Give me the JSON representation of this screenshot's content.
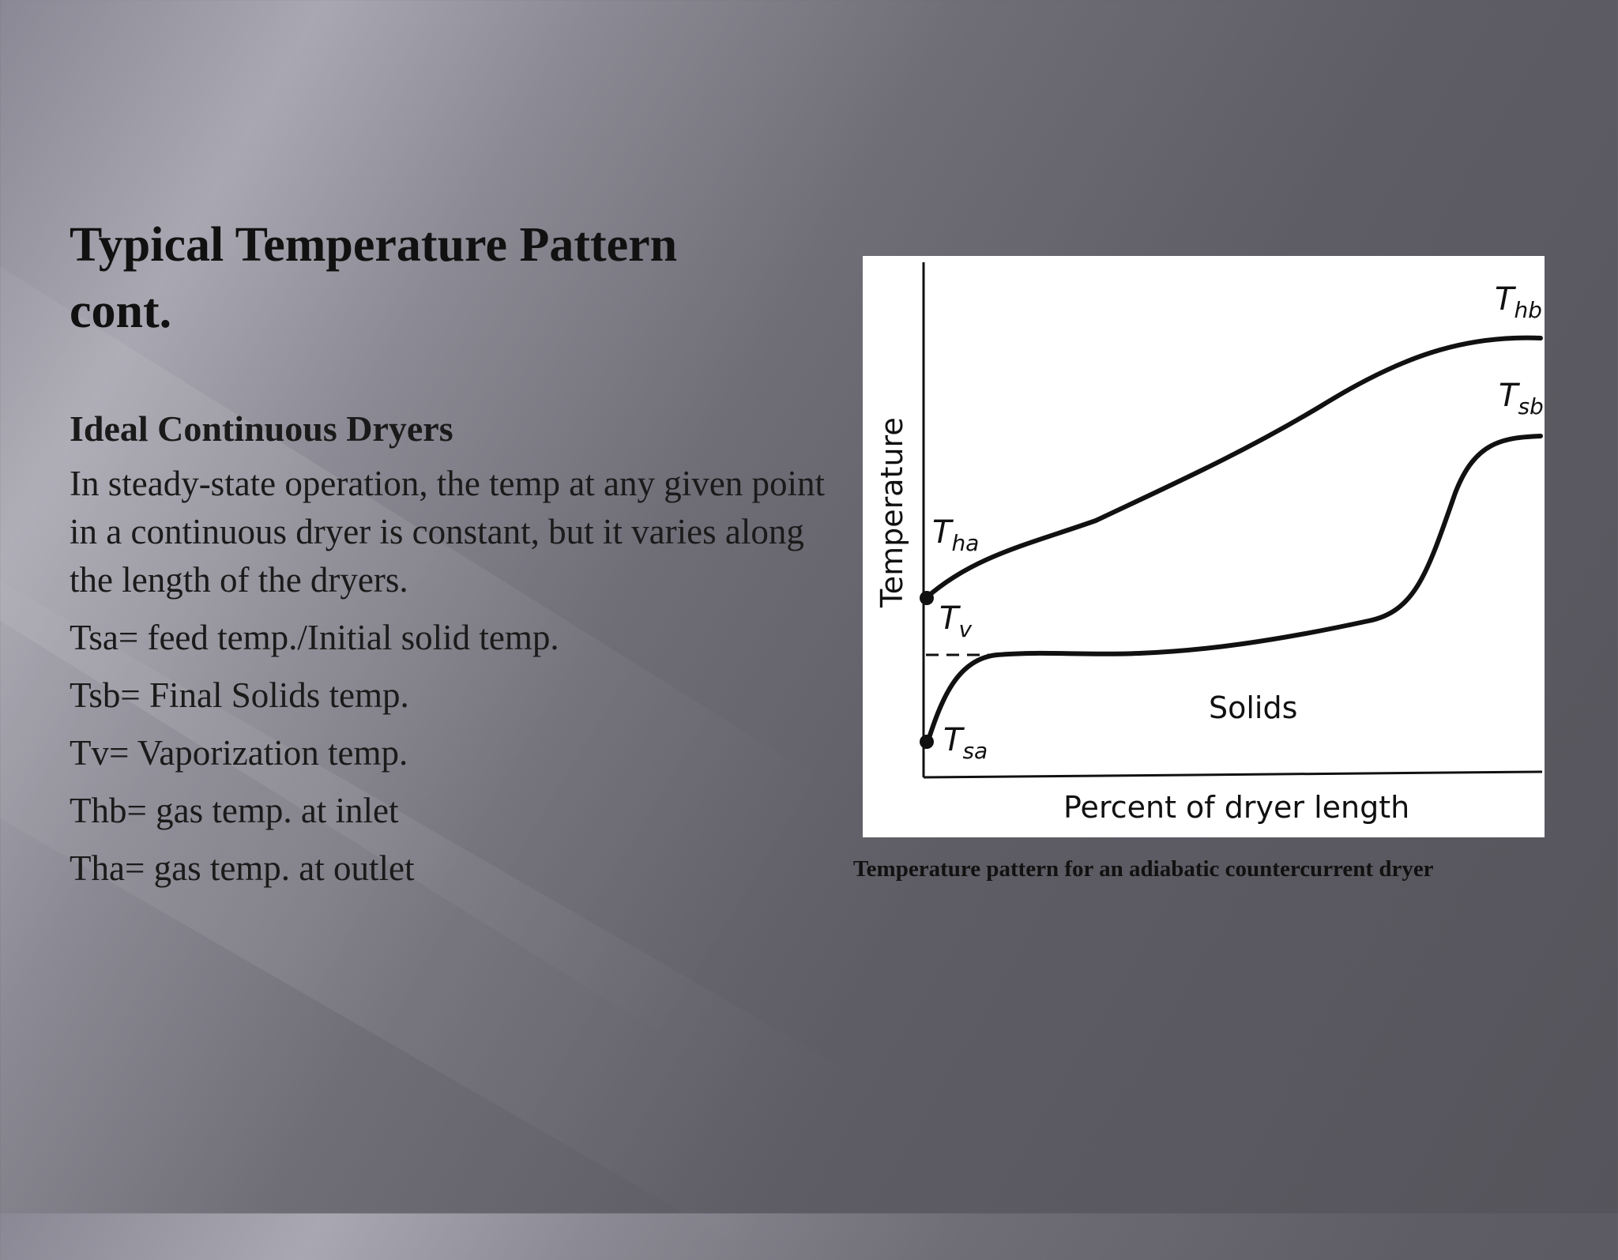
{
  "slide": {
    "title_line1": "Typical Temperature Pattern",
    "title_line2": "cont.",
    "subheading": "Ideal Continuous Dryers",
    "paragraph": "In steady-state operation, the temp at any given point in a continuous dryer is constant, but it varies along the length of the dryers.",
    "definitions": [
      "Tsa= feed temp./Initial solid temp.",
      "Tsb= Final Solids temp.",
      "Tv= Vaporization temp.",
      "Thb= gas temp. at inlet",
      "Tha= gas temp. at outlet"
    ],
    "caption": "Temperature pattern for an adiabatic countercurrent dryer"
  },
  "figure": {
    "y_axis_label": "Temperature",
    "x_axis_label": "Percent of dryer length",
    "region_label": "Solids",
    "curve_labels": {
      "tha": {
        "main": "T",
        "sub": "ha"
      },
      "thb": {
        "main": "T",
        "sub": "hb"
      },
      "tv": {
        "main": "T",
        "sub": "v"
      },
      "tsa": {
        "main": "T",
        "sub": "sa"
      },
      "tsb": {
        "main": "T",
        "sub": "sb"
      }
    },
    "colors": {
      "line": "#111111",
      "background": "#ffffff"
    }
  }
}
